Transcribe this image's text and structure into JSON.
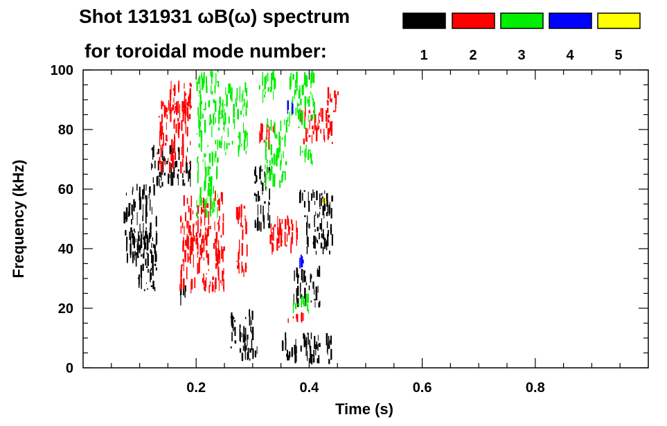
{
  "chart_data": {
    "type": "scatter",
    "title_line1": "Shot 131931 ωB(ω) spectrum",
    "title_line2": "for toroidal mode number:",
    "xlabel": "Time (s)",
    "ylabel": "Frequency (kHz)",
    "xlim": [
      0.0,
      1.0
    ],
    "ylim": [
      0,
      100
    ],
    "x_ticks": [
      0.2,
      0.4,
      0.6,
      0.8
    ],
    "x_tick_labels": [
      "0.2",
      "0.4",
      "0.6",
      "0.8"
    ],
    "y_ticks": [
      0,
      20,
      40,
      60,
      80,
      100
    ],
    "y_tick_labels": [
      "0",
      "20",
      "40",
      "60",
      "80",
      "100"
    ],
    "legend": [
      {
        "label": "1",
        "color": "#000000"
      },
      {
        "label": "2",
        "color": "#ff0000"
      },
      {
        "label": "3",
        "color": "#00ee00"
      },
      {
        "label": "4",
        "color": "#0000ff"
      },
      {
        "label": "5",
        "color": "#ffff00"
      }
    ],
    "series": [
      {
        "name": "n=1",
        "color": "#000000",
        "clusters": [
          {
            "t0": 0.07,
            "t1": 0.13,
            "f0": 35,
            "f1": 62
          },
          {
            "t0": 0.09,
            "t1": 0.13,
            "f0": 25,
            "f1": 45
          },
          {
            "t0": 0.12,
            "t1": 0.19,
            "f0": 60,
            "f1": 75
          },
          {
            "t0": 0.17,
            "t1": 0.18,
            "f0": 20,
            "f1": 30
          },
          {
            "t0": 0.26,
            "t1": 0.3,
            "f0": 5,
            "f1": 20
          },
          {
            "t0": 0.28,
            "t1": 0.31,
            "f0": 2,
            "f1": 8
          },
          {
            "t0": 0.3,
            "t1": 0.33,
            "f0": 45,
            "f1": 68
          },
          {
            "t0": 0.38,
            "t1": 0.44,
            "f0": 50,
            "f1": 60
          },
          {
            "t0": 0.39,
            "t1": 0.44,
            "f0": 38,
            "f1": 52
          },
          {
            "t0": 0.37,
            "t1": 0.42,
            "f0": 20,
            "f1": 35
          },
          {
            "t0": 0.35,
            "t1": 0.44,
            "f0": 1,
            "f1": 12
          }
        ]
      },
      {
        "name": "n=2",
        "color": "#ff0000",
        "clusters": [
          {
            "t0": 0.13,
            "t1": 0.19,
            "f0": 65,
            "f1": 90
          },
          {
            "t0": 0.15,
            "t1": 0.19,
            "f0": 85,
            "f1": 97
          },
          {
            "t0": 0.17,
            "t1": 0.25,
            "f0": 25,
            "f1": 60
          },
          {
            "t0": 0.27,
            "t1": 0.29,
            "f0": 30,
            "f1": 55
          },
          {
            "t0": 0.31,
            "t1": 0.34,
            "f0": 73,
            "f1": 83
          },
          {
            "t0": 0.33,
            "t1": 0.38,
            "f0": 38,
            "f1": 52
          },
          {
            "t0": 0.38,
            "t1": 0.44,
            "f0": 75,
            "f1": 88
          },
          {
            "t0": 0.43,
            "t1": 0.45,
            "f0": 85,
            "f1": 95
          },
          {
            "t0": 0.35,
            "t1": 0.39,
            "f0": 15,
            "f1": 19
          }
        ]
      },
      {
        "name": "n=3",
        "color": "#00ee00",
        "clusters": [
          {
            "t0": 0.2,
            "t1": 0.24,
            "f0": 50,
            "f1": 100
          },
          {
            "t0": 0.24,
            "t1": 0.29,
            "f0": 70,
            "f1": 96
          },
          {
            "t0": 0.31,
            "t1": 0.34,
            "f0": 88,
            "f1": 100
          },
          {
            "t0": 0.32,
            "t1": 0.36,
            "f0": 60,
            "f1": 84
          },
          {
            "t0": 0.36,
            "t1": 0.41,
            "f0": 80,
            "f1": 100
          },
          {
            "t0": 0.38,
            "t1": 0.41,
            "f0": 68,
            "f1": 75
          },
          {
            "t0": 0.37,
            "t1": 0.4,
            "f0": 18,
            "f1": 25
          }
        ]
      },
      {
        "name": "n=4",
        "color": "#0000ff",
        "clusters": [
          {
            "t0": 0.36,
            "t1": 0.37,
            "f0": 83,
            "f1": 90
          },
          {
            "t0": 0.38,
            "t1": 0.39,
            "f0": 33,
            "f1": 38
          }
        ]
      },
      {
        "name": "n=5",
        "color": "#ffff00",
        "clusters": [
          {
            "t0": 0.42,
            "t1": 0.43,
            "f0": 55,
            "f1": 57
          }
        ]
      }
    ]
  }
}
